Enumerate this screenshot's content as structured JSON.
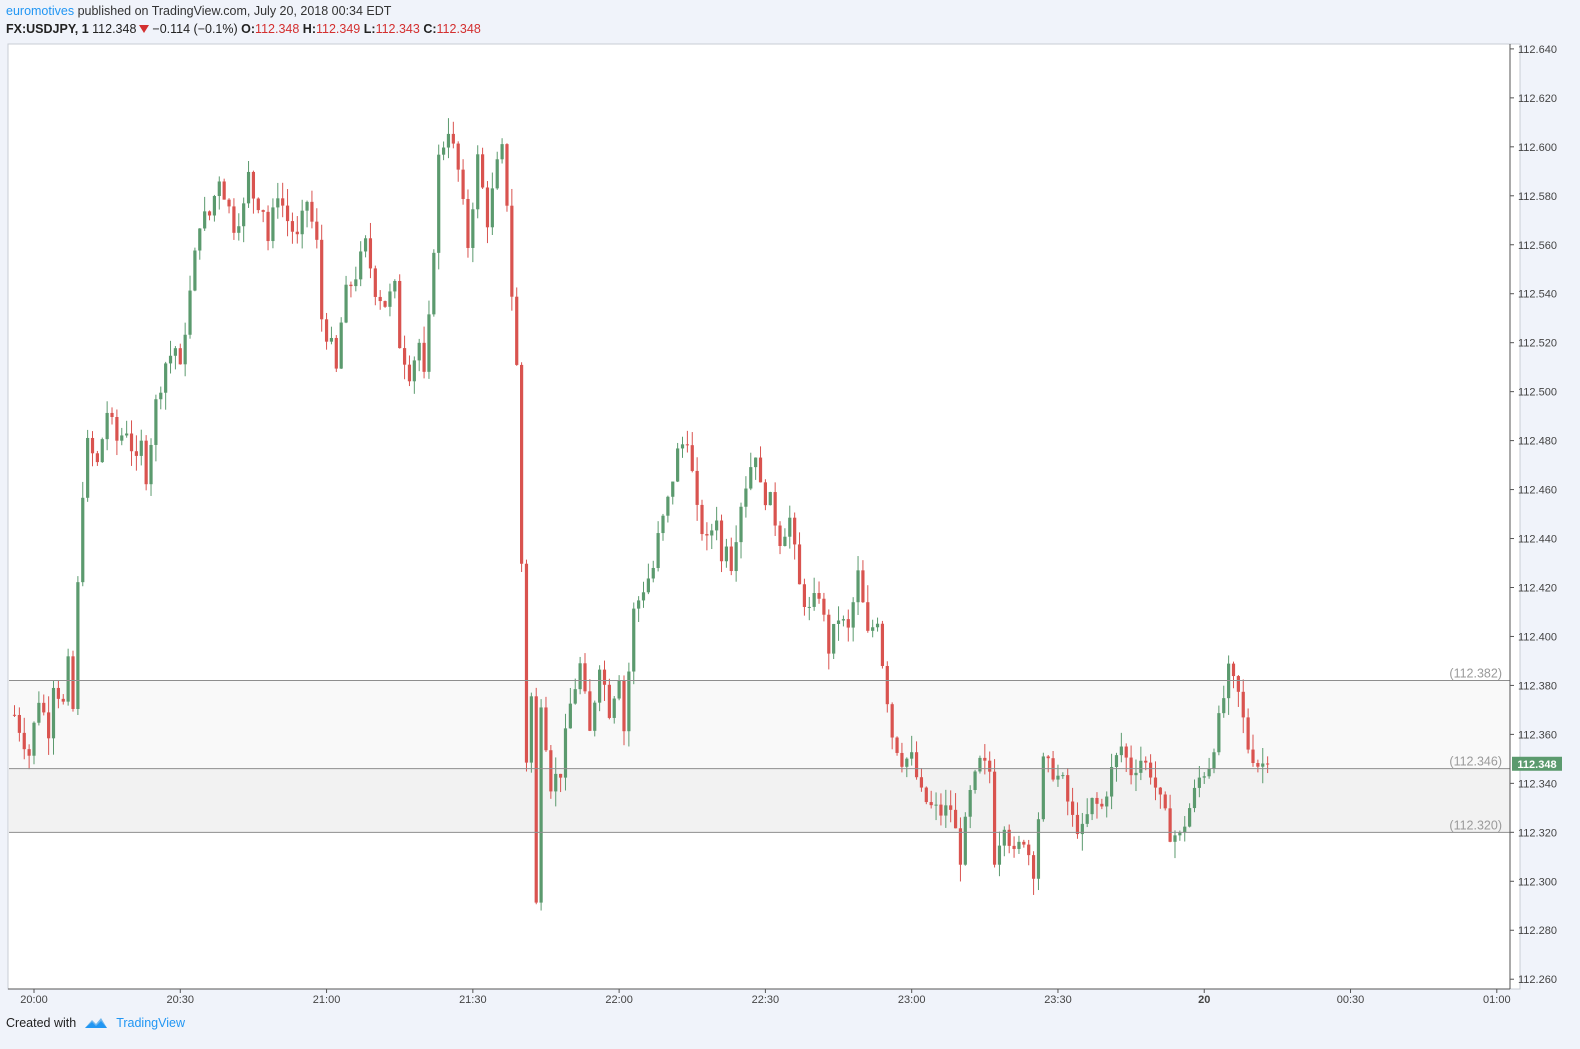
{
  "header": {
    "author": "euromotives",
    "published_text": "published on TradingView.com, July 20, 2018 00:34 EDT",
    "symbol": "FX:USDJPY, 1",
    "last": "112.348",
    "change": "−0.114 (−0.1%)",
    "o_label": "O:",
    "o": "112.348",
    "h_label": "H:",
    "h": "112.349",
    "l_label": "L:",
    "l": "112.343",
    "c_label": "C:",
    "c": "112.348"
  },
  "footer": {
    "created_with": "Created with",
    "brand": "TradingView"
  },
  "colors": {
    "up": "#5b9a6e",
    "down": "#d9534f",
    "price_tag": "#5b9a6e",
    "level_label": "#9a9a9a"
  },
  "chart_data": {
    "type": "candlestick",
    "symbol": "FX:USDJPY",
    "interval": "1",
    "ylim": [
      112.256,
      112.642
    ],
    "y_ticks": [
      "112.640",
      "112.620",
      "112.600",
      "112.580",
      "112.560",
      "112.540",
      "112.520",
      "112.500",
      "112.480",
      "112.460",
      "112.440",
      "112.420",
      "112.400",
      "112.380",
      "112.360",
      "112.340",
      "112.320",
      "112.300",
      "112.280",
      "112.260"
    ],
    "x_ticks": [
      {
        "label": "20:00",
        "t": "19:59"
      },
      {
        "label": "20:30",
        "t": "20:29"
      },
      {
        "label": "21:00",
        "t": "20:59"
      },
      {
        "label": "21:30",
        "t": "21:29"
      },
      {
        "label": "22:00",
        "t": "21:59"
      },
      {
        "label": "22:30",
        "t": "22:29"
      },
      {
        "label": "23:00",
        "t": "22:59"
      },
      {
        "label": "23:30",
        "t": "23:29"
      },
      {
        "label": "20",
        "t": "23:59",
        "bold": true
      },
      {
        "label": "00:30",
        "t": "00:29"
      },
      {
        "label": "01:00",
        "t": "00:59"
      }
    ],
    "last_price": "112.348",
    "last_price_value": 112.348,
    "levels": [
      {
        "value": 112.382,
        "label": "(112.382)"
      },
      {
        "value": 112.346,
        "label": "(112.346)"
      },
      {
        "value": 112.32,
        "label": "(112.320)"
      }
    ],
    "waypoints": [
      [
        "19:55",
        112.368
      ],
      [
        "19:58",
        112.352
      ],
      [
        "20:00",
        112.375
      ],
      [
        "20:02",
        112.362
      ],
      [
        "20:03",
        112.382
      ],
      [
        "20:05",
        112.372
      ],
      [
        "20:06",
        112.388
      ],
      [
        "20:07",
        112.37
      ],
      [
        "20:08",
        112.42
      ],
      [
        "20:09",
        112.46
      ],
      [
        "20:10",
        112.478
      ],
      [
        "20:12",
        112.47
      ],
      [
        "20:14",
        112.492
      ],
      [
        "20:16",
        112.48
      ],
      [
        "20:18",
        112.485
      ],
      [
        "20:20",
        112.47
      ],
      [
        "20:21",
        112.478
      ],
      [
        "20:22",
        112.466
      ],
      [
        "20:24",
        112.495
      ],
      [
        "20:26",
        112.512
      ],
      [
        "20:28",
        112.518
      ],
      [
        "20:29",
        112.508
      ],
      [
        "20:30",
        112.526
      ],
      [
        "20:31",
        112.54
      ],
      [
        "20:33",
        112.57
      ],
      [
        "20:35",
        112.572
      ],
      [
        "20:37",
        112.588
      ],
      [
        "20:40",
        112.568
      ],
      [
        "20:42",
        112.575
      ],
      [
        "20:43",
        112.588
      ],
      [
        "20:44",
        112.58
      ],
      [
        "20:46",
        112.575
      ],
      [
        "20:47",
        112.562
      ],
      [
        "20:49",
        112.582
      ],
      [
        "20:51",
        112.57
      ],
      [
        "20:53",
        112.562
      ],
      [
        "20:55",
        112.578
      ],
      [
        "20:57",
        112.56
      ],
      [
        "20:58",
        112.53
      ],
      [
        "21:00",
        112.518
      ],
      [
        "21:01",
        112.508
      ],
      [
        "21:02",
        112.528
      ],
      [
        "21:03",
        112.54
      ],
      [
        "21:05",
        112.548
      ],
      [
        "21:07",
        112.56
      ],
      [
        "21:09",
        112.542
      ],
      [
        "21:11",
        112.536
      ],
      [
        "21:13",
        112.542
      ],
      [
        "21:14",
        112.52
      ],
      [
        "21:16",
        112.508
      ],
      [
        "21:18",
        112.52
      ],
      [
        "21:19",
        112.505
      ],
      [
        "21:20",
        112.528
      ],
      [
        "21:21",
        112.56
      ],
      [
        "21:22",
        112.595
      ],
      [
        "21:24",
        112.608
      ],
      [
        "21:26",
        112.59
      ],
      [
        "21:28",
        112.56
      ],
      [
        "21:30",
        112.595
      ],
      [
        "21:32",
        112.57
      ],
      [
        "21:34",
        112.592
      ],
      [
        "21:35",
        112.598
      ],
      [
        "21:36",
        112.578
      ],
      [
        "21:37",
        112.54
      ],
      [
        "21:38",
        112.51
      ],
      [
        "21:40",
        112.35
      ],
      [
        "21:41",
        112.375
      ],
      [
        "21:42",
        112.29
      ],
      [
        "21:43",
        112.375
      ],
      [
        "21:45",
        112.34
      ],
      [
        "21:47",
        112.345
      ],
      [
        "21:49",
        112.372
      ],
      [
        "21:51",
        112.388
      ],
      [
        "21:53",
        112.36
      ],
      [
        "21:55",
        112.39
      ],
      [
        "21:57",
        112.37
      ],
      [
        "21:59",
        112.385
      ],
      [
        "22:00",
        112.362
      ],
      [
        "22:02",
        112.41
      ],
      [
        "22:04",
        112.42
      ],
      [
        "22:06",
        112.428
      ],
      [
        "22:07",
        112.44
      ],
      [
        "22:09",
        112.455
      ],
      [
        "22:11",
        112.475
      ],
      [
        "22:13",
        112.482
      ],
      [
        "22:15",
        112.45
      ],
      [
        "22:17",
        112.438
      ],
      [
        "22:19",
        112.45
      ],
      [
        "22:20",
        112.43
      ],
      [
        "22:21",
        112.44
      ],
      [
        "22:22",
        112.43
      ],
      [
        "22:24",
        112.455
      ],
      [
        "22:26",
        112.47
      ],
      [
        "22:27",
        112.476
      ],
      [
        "22:28",
        112.46
      ],
      [
        "22:30",
        112.455
      ],
      [
        "22:32",
        112.44
      ],
      [
        "22:34",
        112.448
      ],
      [
        "22:36",
        112.42
      ],
      [
        "22:38",
        112.41
      ],
      [
        "22:40",
        112.418
      ],
      [
        "22:42",
        112.395
      ],
      [
        "22:44",
        112.408
      ],
      [
        "22:46",
        112.402
      ],
      [
        "22:48",
        112.425
      ],
      [
        "22:50",
        112.4
      ],
      [
        "22:52",
        112.408
      ],
      [
        "22:53",
        112.39
      ],
      [
        "22:55",
        112.36
      ],
      [
        "22:57",
        112.35
      ],
      [
        "22:59",
        112.35
      ],
      [
        "23:01",
        112.335
      ],
      [
        "23:03",
        112.33
      ],
      [
        "23:05",
        112.328
      ],
      [
        "23:07",
        112.33
      ],
      [
        "23:09",
        112.31
      ],
      [
        "23:11",
        112.335
      ],
      [
        "23:13",
        112.348
      ],
      [
        "23:15",
        112.345
      ],
      [
        "23:16",
        112.31
      ],
      [
        "23:18",
        112.325
      ],
      [
        "23:20",
        112.31
      ],
      [
        "23:22",
        112.318
      ],
      [
        "23:24",
        112.305
      ],
      [
        "23:26",
        112.348
      ],
      [
        "23:28",
        112.345
      ],
      [
        "23:30",
        112.34
      ],
      [
        "23:32",
        112.325
      ],
      [
        "23:34",
        112.32
      ],
      [
        "23:36",
        112.332
      ],
      [
        "23:38",
        112.33
      ],
      [
        "23:40",
        112.345
      ],
      [
        "23:42",
        112.355
      ],
      [
        "23:44",
        112.345
      ],
      [
        "23:46",
        112.35
      ],
      [
        "23:48",
        112.345
      ],
      [
        "23:50",
        112.332
      ],
      [
        "23:52",
        112.32
      ],
      [
        "23:54",
        112.318
      ],
      [
        "23:56",
        112.33
      ],
      [
        "23:58",
        112.342
      ],
      [
        "00:00",
        112.348
      ],
      [
        "00:02",
        112.365
      ],
      [
        "00:04",
        112.385
      ],
      [
        "00:06",
        112.376
      ],
      [
        "00:08",
        112.355
      ],
      [
        "00:10",
        112.348
      ],
      [
        "00:12",
        112.348
      ]
    ]
  }
}
